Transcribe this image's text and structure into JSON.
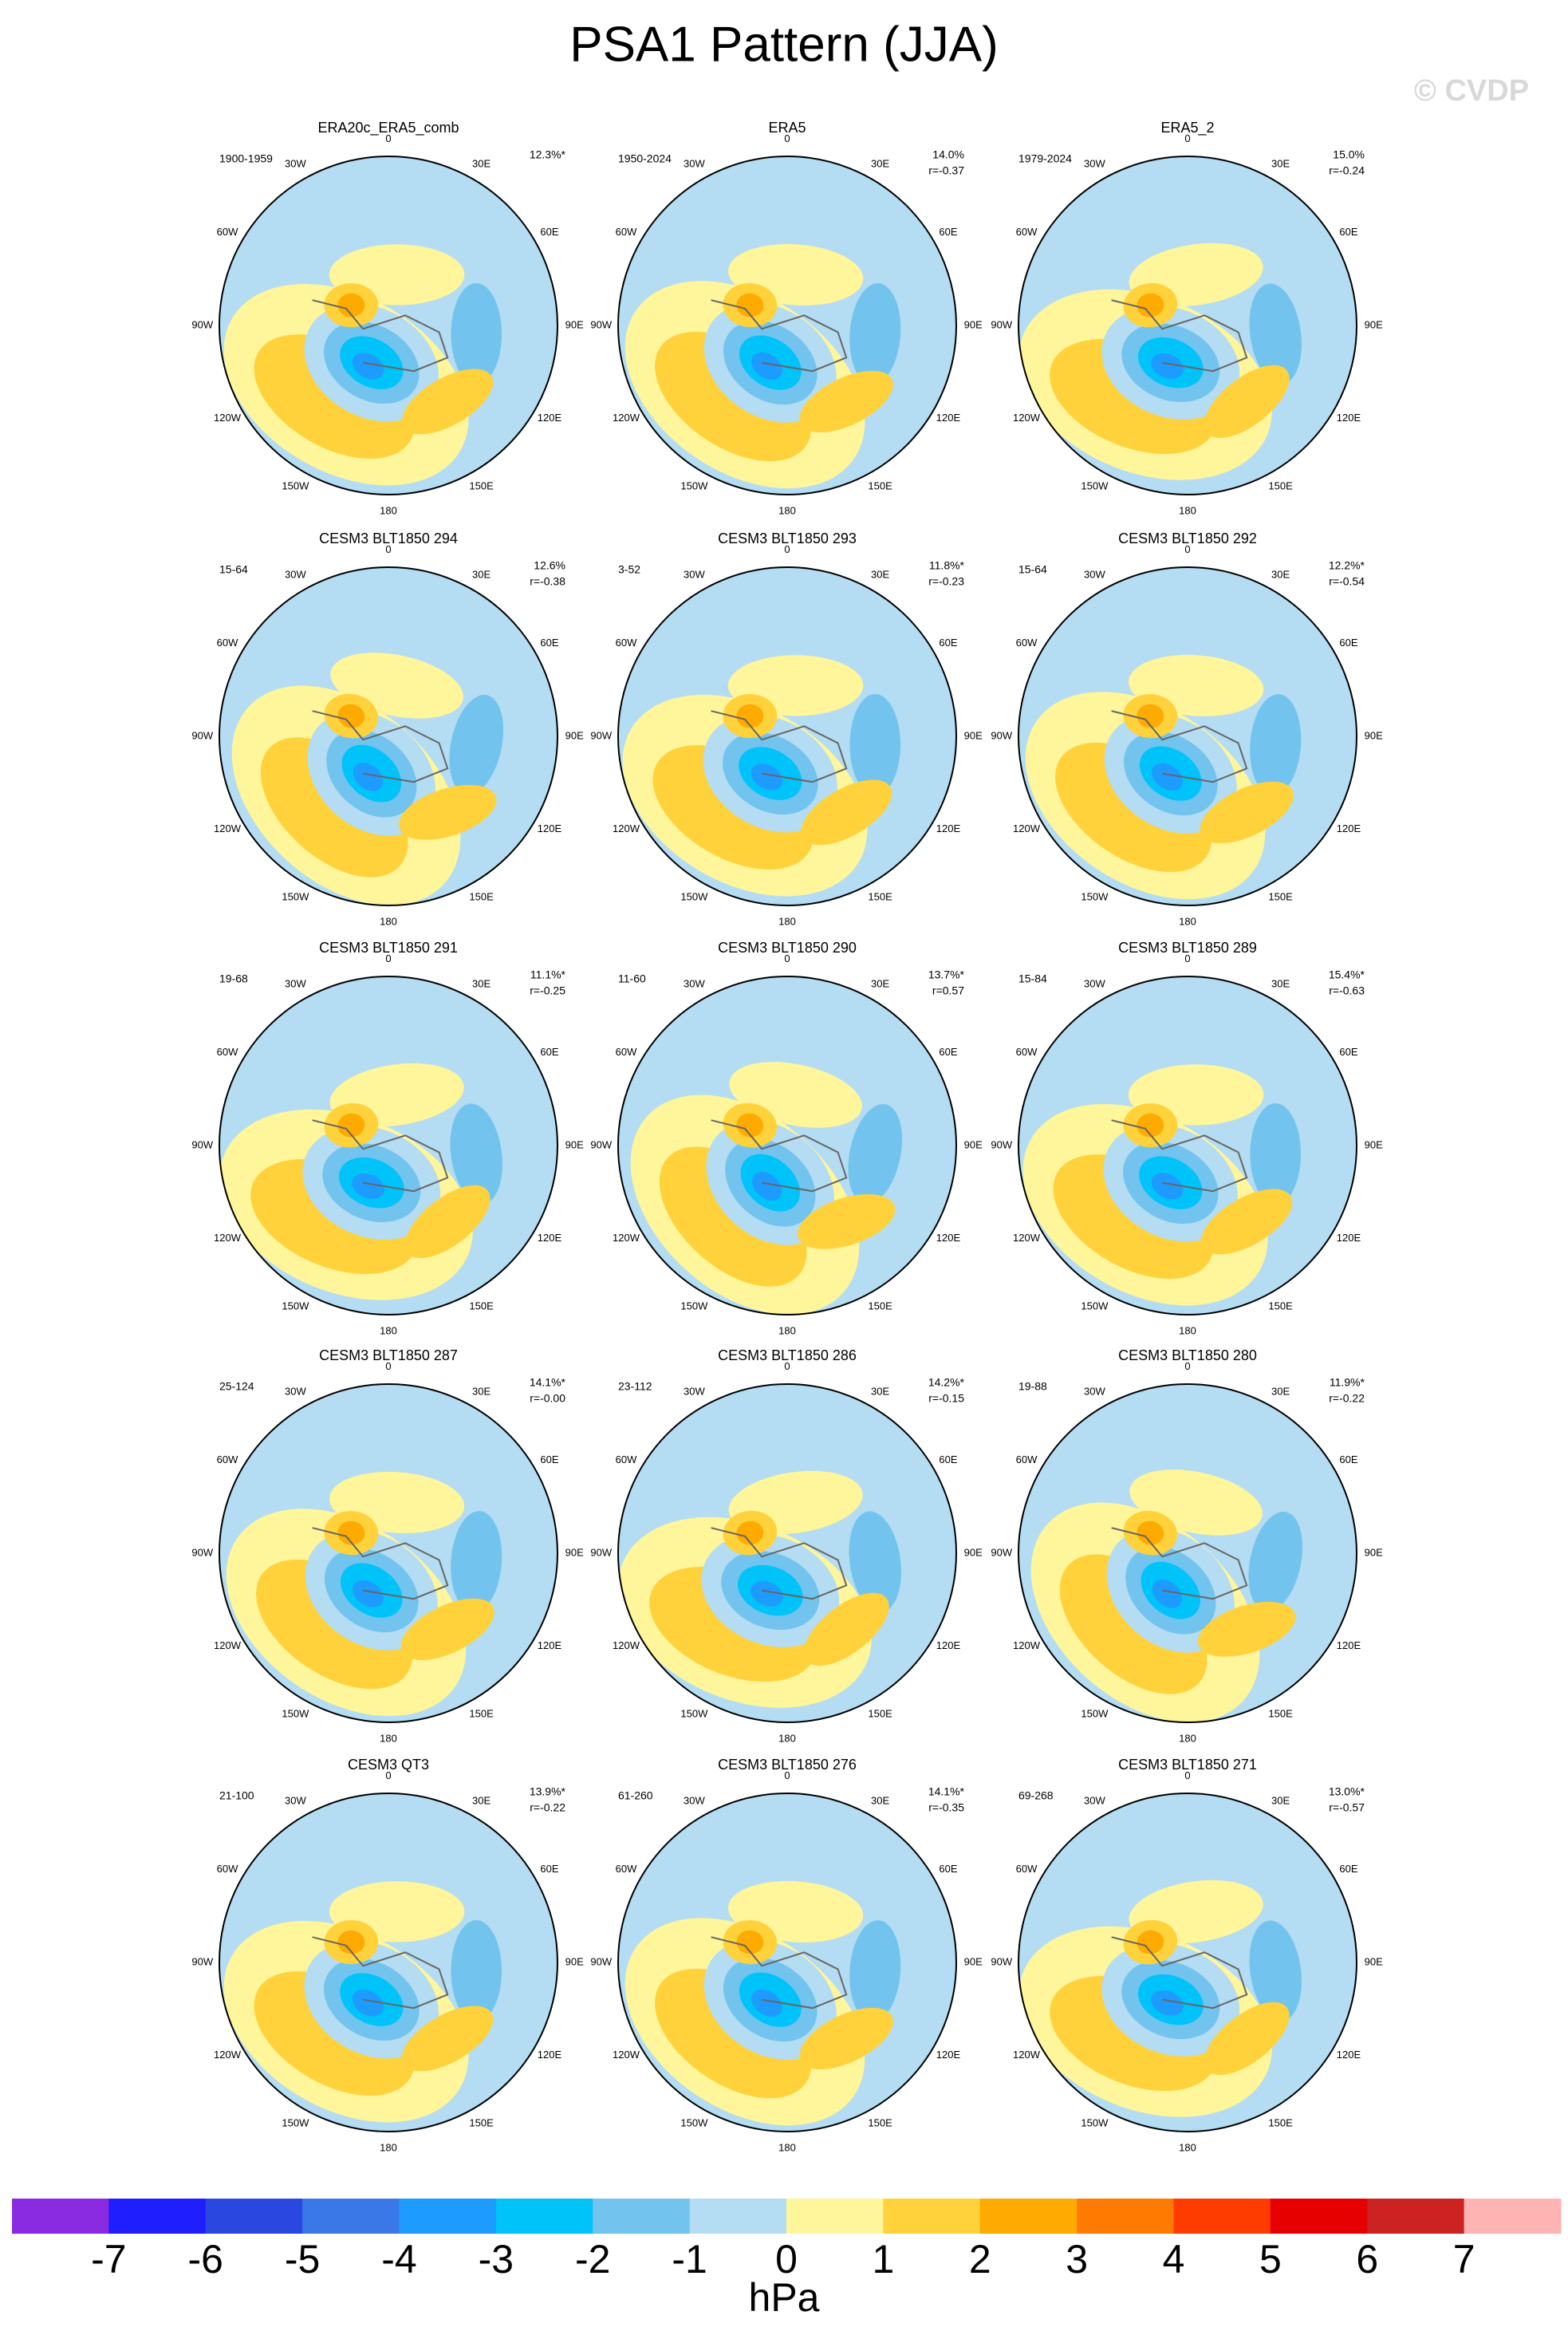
{
  "title": "PSA1 Pattern (JJA)",
  "watermark": "© CVDP",
  "longitude_labels": [
    "0",
    "30E",
    "60E",
    "90E",
    "120E",
    "150E",
    "180",
    "150W",
    "120W",
    "90W",
    "60W",
    "30W"
  ],
  "panels": [
    {
      "title": "ERA20c_ERA5_comb",
      "years": "1900-1959",
      "percent": "12.3%*"
    },
    {
      "title": "ERA5",
      "years": "1950-2024",
      "percent": "14.0%",
      "r": "r=-0.37"
    },
    {
      "title": "ERA5_2",
      "years": "1979-2024",
      "percent": "15.0%",
      "r": "r=-0.24"
    },
    {
      "title": "CESM3 BLT1850 294",
      "years": "15-64",
      "percent": "12.6%",
      "r": "r=-0.38"
    },
    {
      "title": "CESM3 BLT1850 293",
      "years": "3-52",
      "percent": "11.8%*",
      "r": "r=-0.23"
    },
    {
      "title": "CESM3 BLT1850 292",
      "years": "15-64",
      "percent": "12.2%*",
      "r": "r=-0.54"
    },
    {
      "title": "CESM3 BLT1850 291",
      "years": "19-68",
      "percent": "11.1%*",
      "r": "r=-0.25"
    },
    {
      "title": "CESM3 BLT1850 290",
      "years": "11-60",
      "percent": "13.7%*",
      "r": "r=0.57"
    },
    {
      "title": "CESM3 BLT1850 289",
      "years": "15-84",
      "percent": "15.4%*",
      "r": "r=-0.63"
    },
    {
      "title": "CESM3 BLT1850 287",
      "years": "25-124",
      "percent": "14.1%*",
      "r": "r=-0.00"
    },
    {
      "title": "CESM3 BLT1850 286",
      "years": "23-112",
      "percent": "14.2%*",
      "r": "r=-0.15"
    },
    {
      "title": "CESM3 BLT1850 280",
      "years": "19-88",
      "percent": "11.9%*",
      "r": "r=-0.22"
    },
    {
      "title": "CESM3 QT3",
      "years": "21-100",
      "percent": "13.9%*",
      "r": "r=-0.22"
    },
    {
      "title": "CESM3 BLT1850 276",
      "years": "61-260",
      "percent": "14.1%*",
      "r": "r=-0.35"
    },
    {
      "title": "CESM3 BLT1850 271",
      "years": "69-268",
      "percent": "13.0%*",
      "r": "r=-0.57"
    }
  ],
  "colorbar": {
    "colors": [
      "#8a2be2",
      "#1e1eff",
      "#2a48e0",
      "#3a78e8",
      "#1e9bff",
      "#00c3fa",
      "#72c4ee",
      "#b4dcf2",
      "#fff59b",
      "#ffd23c",
      "#ffaa00",
      "#ff7a00",
      "#ff3c00",
      "#e60000",
      "#cc2222",
      "#ffb4b4"
    ],
    "labels": [
      -7,
      -6,
      -5,
      -4,
      -3,
      -2,
      -1,
      0,
      1,
      2,
      3,
      4,
      5,
      6,
      7
    ],
    "units": "hPa"
  }
}
